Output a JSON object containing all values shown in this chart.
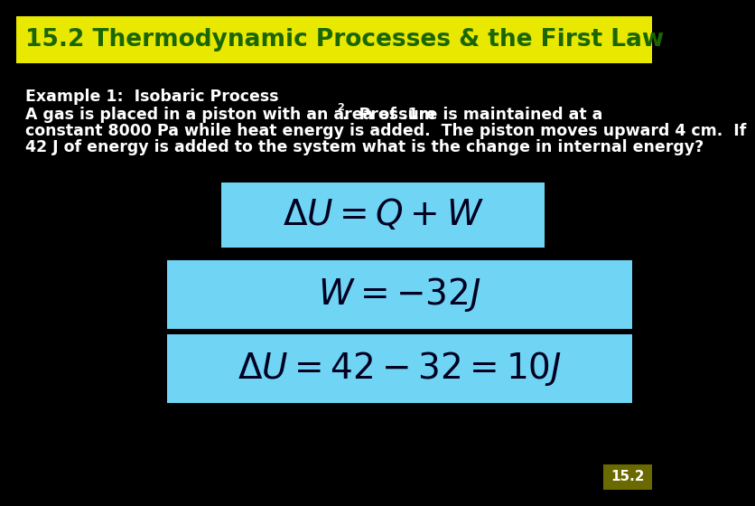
{
  "bg_color": "#000000",
  "title_bg_color": "#e8e800",
  "title_text": "15.2 Thermodynamic Processes & the First Law",
  "title_text_color": "#1a6600",
  "title_fontsize": 19,
  "example_label": "Example 1:  Isobaric Process",
  "body_color": "#ffffff",
  "body_fontsize": 12.5,
  "eq_box_color": "#70d4f4",
  "eq1": "$\\Delta U = Q + W$",
  "eq2": "$W = -32J$",
  "eq3": "$\\Delta U = 42 - 32 = 10J$",
  "eq_fontsize": 28,
  "footnote": "15.2",
  "footnote_color": "#ffffff",
  "footnote_fontsize": 11,
  "footnote_bg": "#6a6a00"
}
